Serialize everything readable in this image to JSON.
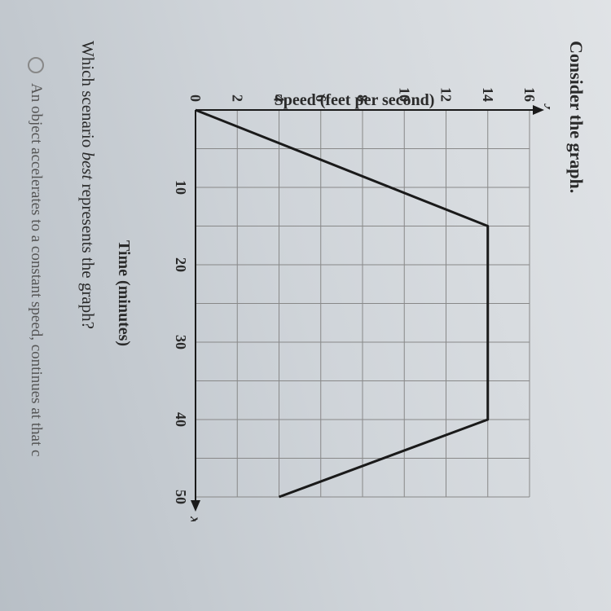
{
  "heading": "Consider the graph.",
  "question_prefix": "Which scenario ",
  "question_italic": "best",
  "question_suffix": " represents the graph?",
  "option_text": "An object accelerates to a constant speed, continues at that c",
  "chart": {
    "type": "line",
    "xlabel": "Time (minutes)",
    "ylabel": "Speed (feet per second)",
    "y_axis_symbol": "y",
    "x_axis_symbol": "x",
    "xlim": [
      0,
      50
    ],
    "ylim": [
      0,
      16
    ],
    "xtick_step": 10,
    "ytick_step": 2,
    "xgrid_step": 5,
    "ygrid_step": 2,
    "xticks": [
      0,
      10,
      20,
      30,
      40,
      50
    ],
    "yticks": [
      0,
      2,
      4,
      6,
      8,
      10,
      12,
      14,
      16
    ],
    "line_color": "#1a1a1a",
    "line_width": 3,
    "grid_color": "#888888",
    "grid_width": 1,
    "axis_color": "#1a1a1a",
    "axis_width": 2,
    "background_color": "transparent",
    "tick_fontsize": 18,
    "label_fontsize": 20,
    "points": [
      {
        "x": 0,
        "y": 0
      },
      {
        "x": 15,
        "y": 14
      },
      {
        "x": 40,
        "y": 14
      },
      {
        "x": 50,
        "y": 4
      }
    ]
  }
}
